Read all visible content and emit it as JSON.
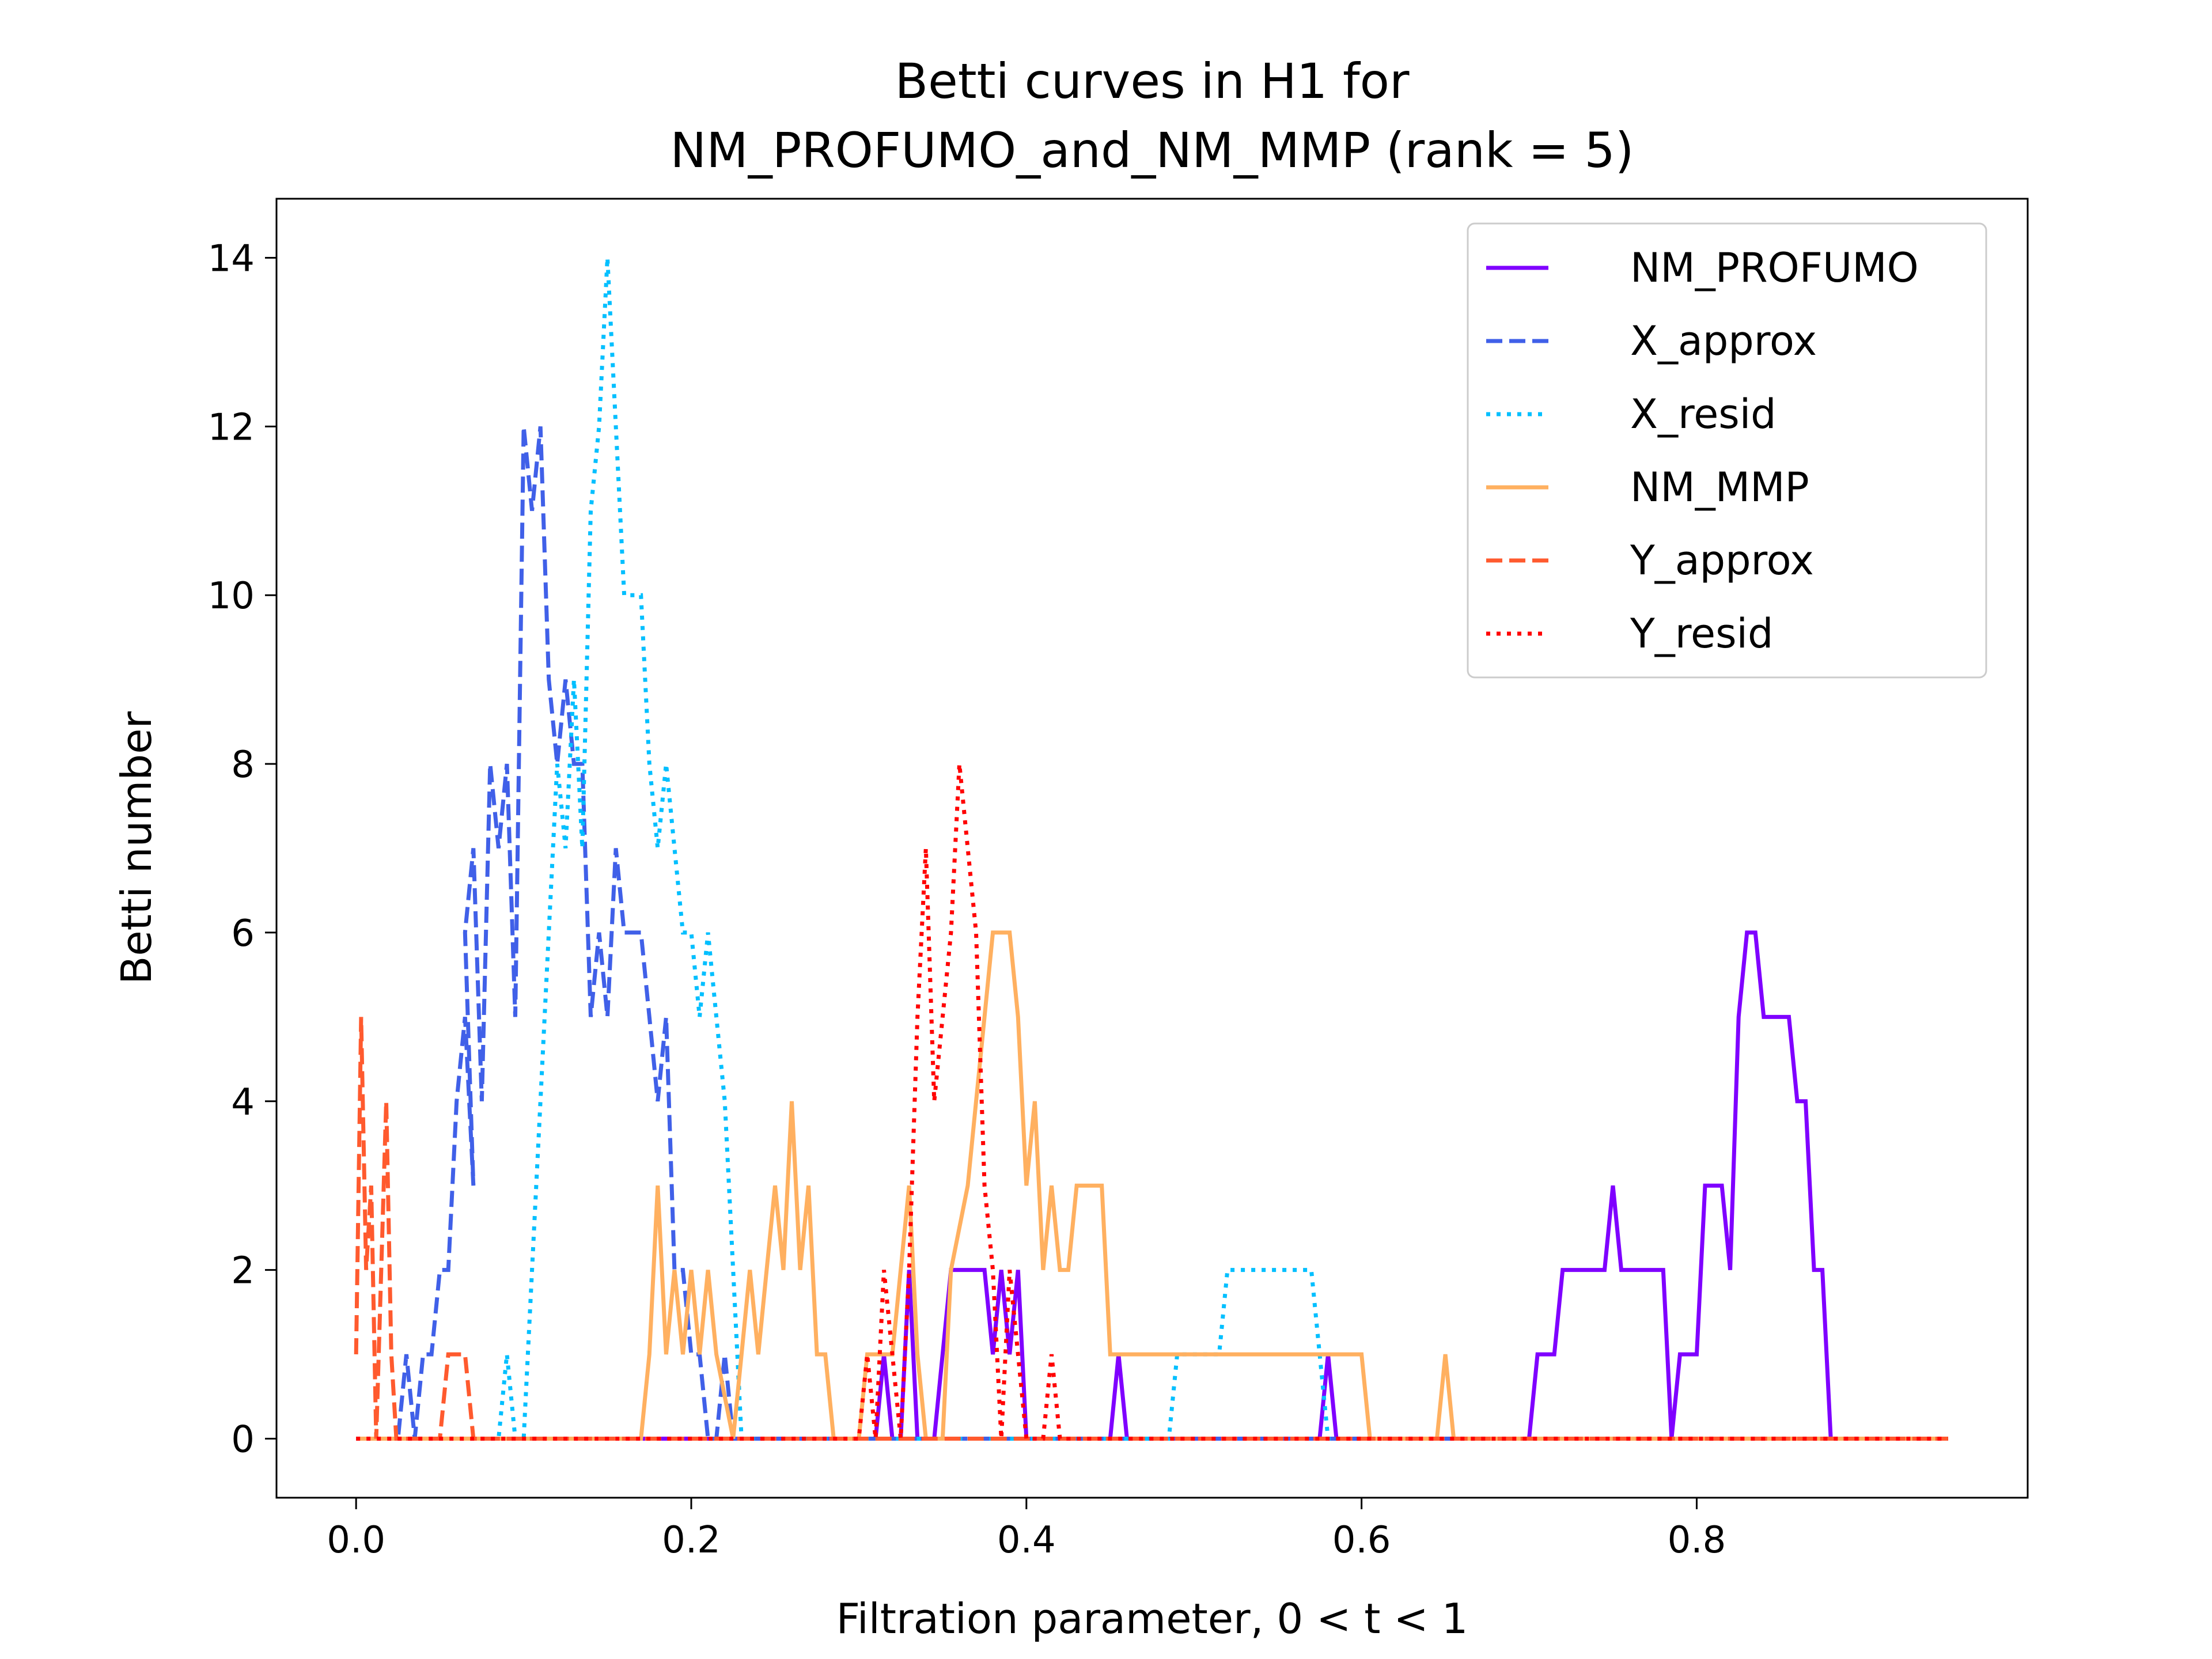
{
  "chart_data": {
    "type": "line",
    "title": [
      "Betti curves in H1 for",
      "NM_PROFUMO_and_NM_MMP (rank = 5)"
    ],
    "xlabel": "Filtration parameter, 0 < t < 1",
    "ylabel": "Betti number",
    "xlim": [
      -0.0475,
      0.9975
    ],
    "ylim": [
      -0.7,
      14.7
    ],
    "xticks": [
      0.0,
      0.2,
      0.4,
      0.6,
      0.8
    ],
    "xtick_labels": [
      "0.0",
      "0.2",
      "0.4",
      "0.6",
      "0.8"
    ],
    "yticks": [
      0,
      2,
      4,
      6,
      8,
      10,
      12,
      14
    ],
    "ytick_labels": [
      "0",
      "2",
      "4",
      "6",
      "8",
      "10",
      "12",
      "14"
    ],
    "grid": false,
    "legend_position": "top-right",
    "series": [
      {
        "name": "NM_PROFUMO",
        "color": "#7f00ff",
        "dash": "solid",
        "points": [
          [
            0,
            0
          ],
          [
            0.31,
            0
          ],
          [
            0.315,
            1
          ],
          [
            0.32,
            0
          ],
          [
            0.325,
            0
          ],
          [
            0.33,
            2
          ],
          [
            0.335,
            0
          ],
          [
            0.345,
            0
          ],
          [
            0.355,
            2
          ],
          [
            0.375,
            2
          ],
          [
            0.38,
            1
          ],
          [
            0.385,
            2
          ],
          [
            0.39,
            1
          ],
          [
            0.395,
            2
          ],
          [
            0.4,
            0
          ],
          [
            0.45,
            0
          ],
          [
            0.455,
            1
          ],
          [
            0.46,
            0
          ],
          [
            0.575,
            0
          ],
          [
            0.58,
            1
          ],
          [
            0.585,
            0
          ],
          [
            0.7,
            0
          ],
          [
            0.705,
            1
          ],
          [
            0.715,
            1
          ],
          [
            0.72,
            2
          ],
          [
            0.745,
            2
          ],
          [
            0.75,
            3
          ],
          [
            0.755,
            2
          ],
          [
            0.78,
            2
          ],
          [
            0.785,
            0
          ],
          [
            0.79,
            1
          ],
          [
            0.8,
            1
          ],
          [
            0.805,
            3
          ],
          [
            0.815,
            3
          ],
          [
            0.82,
            2
          ],
          [
            0.825,
            5
          ],
          [
            0.83,
            6
          ],
          [
            0.835,
            6
          ],
          [
            0.84,
            5
          ],
          [
            0.855,
            5
          ],
          [
            0.86,
            4
          ],
          [
            0.865,
            4
          ],
          [
            0.87,
            2
          ],
          [
            0.875,
            2
          ],
          [
            0.88,
            0
          ],
          [
            0.95,
            0
          ]
        ]
      },
      {
        "name": "X_approx",
        "color": "#4060e8",
        "dash": "dashed",
        "points": [
          [
            0,
            0
          ],
          [
            0.025,
            0
          ],
          [
            0.03,
            1
          ],
          [
            0.035,
            0
          ],
          [
            0.04,
            1
          ],
          [
            0.045,
            1
          ],
          [
            0.05,
            2
          ],
          [
            0.055,
            2
          ],
          [
            0.06,
            4
          ],
          [
            0.065,
            5
          ],
          [
            0.07,
            3
          ],
          [
            0.065,
            6
          ],
          [
            0.07,
            7
          ],
          [
            0.075,
            4
          ],
          [
            0.08,
            8
          ],
          [
            0.085,
            7
          ],
          [
            0.09,
            8
          ],
          [
            0.095,
            5
          ],
          [
            0.1,
            12
          ],
          [
            0.105,
            11
          ],
          [
            0.11,
            12
          ],
          [
            0.115,
            9
          ],
          [
            0.12,
            8
          ],
          [
            0.125,
            9
          ],
          [
            0.13,
            8
          ],
          [
            0.135,
            8
          ],
          [
            0.14,
            5
          ],
          [
            0.145,
            6
          ],
          [
            0.15,
            5
          ],
          [
            0.155,
            7
          ],
          [
            0.16,
            6
          ],
          [
            0.17,
            6
          ],
          [
            0.175,
            5
          ],
          [
            0.18,
            4
          ],
          [
            0.185,
            5
          ],
          [
            0.19,
            2
          ],
          [
            0.195,
            2
          ],
          [
            0.2,
            1
          ],
          [
            0.205,
            1
          ],
          [
            0.21,
            0
          ],
          [
            0.215,
            0
          ],
          [
            0.22,
            1
          ],
          [
            0.225,
            0
          ],
          [
            0.95,
            0
          ]
        ]
      },
      {
        "name": "X_resid",
        "color": "#00bfff",
        "dash": "dotted",
        "points": [
          [
            0,
            0
          ],
          [
            0.085,
            0
          ],
          [
            0.09,
            1
          ],
          [
            0.095,
            0
          ],
          [
            0.1,
            0
          ],
          [
            0.105,
            2
          ],
          [
            0.11,
            4
          ],
          [
            0.115,
            6
          ],
          [
            0.12,
            8
          ],
          [
            0.125,
            7
          ],
          [
            0.13,
            9
          ],
          [
            0.135,
            7
          ],
          [
            0.14,
            11
          ],
          [
            0.145,
            12
          ],
          [
            0.15,
            14
          ],
          [
            0.155,
            12
          ],
          [
            0.16,
            10
          ],
          [
            0.17,
            10
          ],
          [
            0.175,
            8
          ],
          [
            0.18,
            7
          ],
          [
            0.185,
            8
          ],
          [
            0.19,
            7
          ],
          [
            0.195,
            6
          ],
          [
            0.2,
            6
          ],
          [
            0.205,
            5
          ],
          [
            0.21,
            6
          ],
          [
            0.215,
            5
          ],
          [
            0.22,
            4
          ],
          [
            0.225,
            2
          ],
          [
            0.23,
            0
          ],
          [
            0.485,
            0
          ],
          [
            0.49,
            1
          ],
          [
            0.515,
            1
          ],
          [
            0.52,
            2
          ],
          [
            0.57,
            2
          ],
          [
            0.575,
            1
          ],
          [
            0.58,
            0
          ],
          [
            0.95,
            0
          ]
        ]
      },
      {
        "name": "NM_MMP",
        "color": "#ffb060",
        "dash": "solid",
        "points": [
          [
            0,
            0
          ],
          [
            0.17,
            0
          ],
          [
            0.175,
            1
          ],
          [
            0.18,
            3
          ],
          [
            0.185,
            1
          ],
          [
            0.19,
            2
          ],
          [
            0.195,
            1
          ],
          [
            0.2,
            2
          ],
          [
            0.205,
            1
          ],
          [
            0.21,
            2
          ],
          [
            0.215,
            1
          ],
          [
            0.225,
            0
          ],
          [
            0.23,
            1
          ],
          [
            0.235,
            2
          ],
          [
            0.24,
            1
          ],
          [
            0.245,
            2
          ],
          [
            0.25,
            3
          ],
          [
            0.255,
            2
          ],
          [
            0.26,
            4
          ],
          [
            0.265,
            2
          ],
          [
            0.27,
            3
          ],
          [
            0.275,
            1
          ],
          [
            0.28,
            1
          ],
          [
            0.285,
            0
          ],
          [
            0.3,
            0
          ],
          [
            0.305,
            1
          ],
          [
            0.32,
            1
          ],
          [
            0.325,
            2
          ],
          [
            0.33,
            3
          ],
          [
            0.335,
            1
          ],
          [
            0.34,
            0
          ],
          [
            0.35,
            0
          ],
          [
            0.355,
            2
          ],
          [
            0.365,
            3
          ],
          [
            0.37,
            4
          ],
          [
            0.375,
            5
          ],
          [
            0.38,
            6
          ],
          [
            0.39,
            6
          ],
          [
            0.395,
            5
          ],
          [
            0.4,
            3
          ],
          [
            0.405,
            4
          ],
          [
            0.41,
            2
          ],
          [
            0.415,
            3
          ],
          [
            0.42,
            2
          ],
          [
            0.425,
            2
          ],
          [
            0.43,
            3
          ],
          [
            0.445,
            3
          ],
          [
            0.45,
            1
          ],
          [
            0.6,
            1
          ],
          [
            0.605,
            0
          ],
          [
            0.645,
            0
          ],
          [
            0.65,
            1
          ],
          [
            0.655,
            0
          ],
          [
            0.95,
            0
          ]
        ]
      },
      {
        "name": "Y_approx",
        "color": "#ff5a2e",
        "dash": "dashed",
        "points": [
          [
            0,
            1
          ],
          [
            0.003,
            5
          ],
          [
            0.006,
            2
          ],
          [
            0.009,
            3
          ],
          [
            0.012,
            0
          ],
          [
            0.015,
            2
          ],
          [
            0.018,
            4
          ],
          [
            0.021,
            1
          ],
          [
            0.024,
            0
          ],
          [
            0.05,
            0
          ],
          [
            0.055,
            1
          ],
          [
            0.065,
            1
          ],
          [
            0.07,
            0
          ],
          [
            0.95,
            0
          ]
        ]
      },
      {
        "name": "Y_resid",
        "color": "#ff0000",
        "dash": "dotted",
        "points": [
          [
            0,
            0
          ],
          [
            0.3,
            0
          ],
          [
            0.305,
            1
          ],
          [
            0.31,
            0
          ],
          [
            0.315,
            2
          ],
          [
            0.32,
            1
          ],
          [
            0.325,
            0
          ],
          [
            0.33,
            2
          ],
          [
            0.335,
            5
          ],
          [
            0.34,
            7
          ],
          [
            0.345,
            4
          ],
          [
            0.35,
            5
          ],
          [
            0.355,
            6
          ],
          [
            0.36,
            8
          ],
          [
            0.365,
            7
          ],
          [
            0.37,
            6
          ],
          [
            0.375,
            3
          ],
          [
            0.38,
            2
          ],
          [
            0.385,
            0
          ],
          [
            0.39,
            2
          ],
          [
            0.395,
            1
          ],
          [
            0.4,
            0
          ],
          [
            0.41,
            0
          ],
          [
            0.415,
            1
          ],
          [
            0.42,
            0
          ],
          [
            0.95,
            0
          ]
        ]
      }
    ]
  }
}
